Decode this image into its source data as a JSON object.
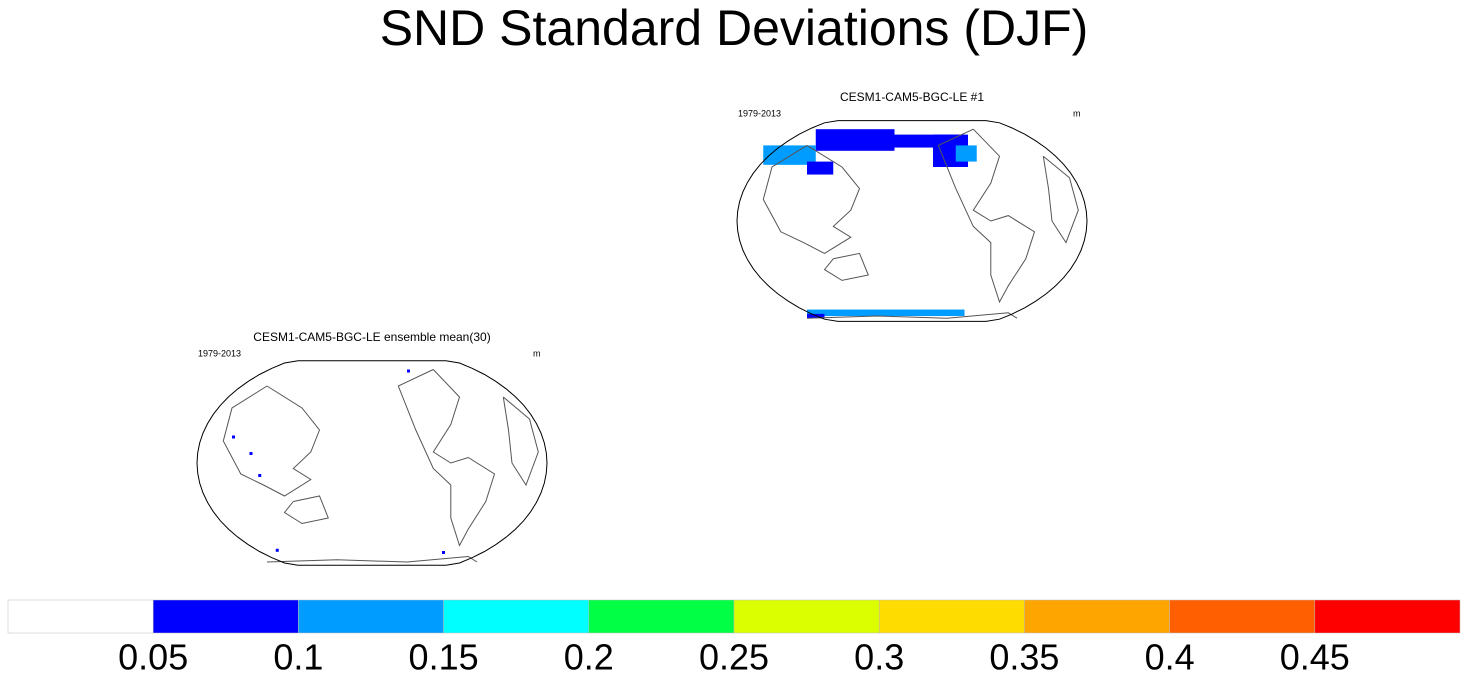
{
  "title": "SND Standard Deviations (DJF)",
  "panels": [
    {
      "title": "CESM1-CAM5-BGC-LE #1",
      "left_label": "1979-2013",
      "right_label": "m"
    },
    {
      "title": "CESM1-CAM5-BGC-LE ensemble mean(30)",
      "left_label": "1979-2013",
      "right_label": "m"
    }
  ],
  "colorbar": {
    "colors": [
      "#ffffff",
      "#0000ff",
      "#009cff",
      "#00ffff",
      "#00ff45",
      "#dcff00",
      "#ffdc00",
      "#ffa500",
      "#ff5f00",
      "#ff0000"
    ],
    "labels": [
      0.05,
      0.1,
      0.15,
      0.2,
      0.25,
      0.3,
      0.35,
      0.4,
      0.45
    ]
  }
}
